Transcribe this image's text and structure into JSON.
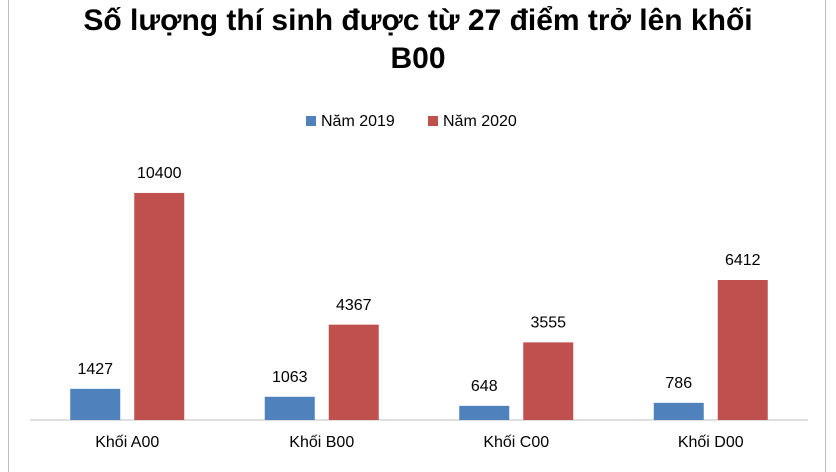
{
  "chart_data": {
    "type": "bar",
    "title": "Số lượng thí sinh được từ 27 điểm trở lên khối B00",
    "categories": [
      "Khối A00",
      "Khối B00",
      "Khối C00",
      "Khối D00"
    ],
    "series": [
      {
        "name": "Năm 2019",
        "color": "#4f81bd",
        "values": [
          1427,
          1063,
          648,
          786
        ]
      },
      {
        "name": "Năm 2020",
        "color": "#c0504d",
        "values": [
          10400,
          4367,
          3555,
          6412
        ]
      }
    ],
    "ylim": [
      0,
      12000
    ],
    "legend": "top"
  }
}
